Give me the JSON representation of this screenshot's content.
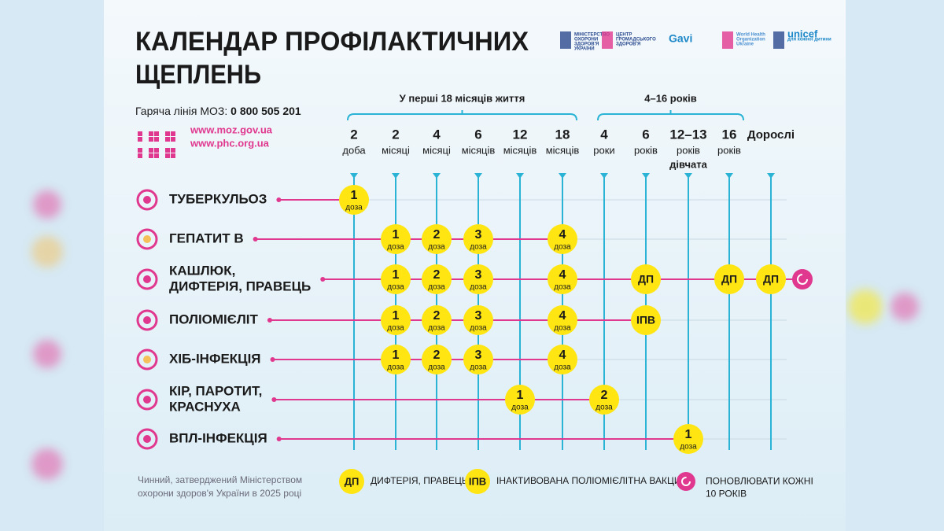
{
  "header": {
    "title": [
      "КАЛЕНДАР ПРОФІЛАКТИЧНИХ",
      "ЩЕПЛЕНЬ"
    ],
    "hotline_label": "Гаряча лінія МОЗ:",
    "hotline_number": "0 800 505 201",
    "urls": [
      "www.moz.gov.ua",
      "www.phc.org.ua"
    ],
    "logos": [
      [
        "МІНІСТЕРСТВО",
        "ОХОРОНИ",
        "ЗДОРОВ'Я",
        "УКРАЇНИ"
      ],
      [
        "ЦЕНТР",
        "ГРОМАДСЬКОГО",
        "ЗДОРОВ'Я"
      ],
      [
        "Gavi"
      ],
      [
        "World Health",
        "Organization",
        "Ukraine"
      ],
      [
        "unicef",
        "для кожної дитини"
      ]
    ]
  },
  "groups": [
    {
      "label": "У перші 18 місяців життя"
    },
    {
      "label": "4–16 років"
    }
  ],
  "columns": [
    {
      "num": "2",
      "unit": "доба"
    },
    {
      "num": "2",
      "unit": "місяці"
    },
    {
      "num": "4",
      "unit": "місяці"
    },
    {
      "num": "6",
      "unit": "місяців"
    },
    {
      "num": "12",
      "unit": "місяців"
    },
    {
      "num": "18",
      "unit": "місяців"
    },
    {
      "num": "4",
      "unit": "роки"
    },
    {
      "num": "6",
      "unit": "років"
    },
    {
      "num": "12–13",
      "unit": "років",
      "extra": "дівчата"
    },
    {
      "num": "16",
      "unit": "років"
    },
    {
      "num": "Дорослі"
    }
  ],
  "rows": [
    {
      "name": [
        "ТУБЕРКУЛЬОЗ"
      ],
      "cells": [
        {
          "n": "1",
          "u": "доза"
        },
        null,
        null,
        null,
        null,
        null,
        null,
        null,
        null,
        null,
        null
      ]
    },
    {
      "name": [
        "ГЕПАТИТ В"
      ],
      "cells": [
        null,
        {
          "n": "1",
          "u": "доза"
        },
        {
          "n": "2",
          "u": "доза"
        },
        {
          "n": "3",
          "u": "доза"
        },
        null,
        {
          "n": "4",
          "u": "доза"
        },
        null,
        null,
        null,
        null,
        null
      ]
    },
    {
      "name": [
        "КАШЛЮК,",
        "ДИФТЕРІЯ, ПРАВЕЦЬ"
      ],
      "cells": [
        null,
        {
          "n": "1",
          "u": "доза"
        },
        {
          "n": "2",
          "u": "доза"
        },
        {
          "n": "3",
          "u": "доза"
        },
        null,
        {
          "n": "4",
          "u": "доза"
        },
        null,
        {
          "n": "ДП"
        },
        null,
        {
          "n": "ДП"
        },
        {
          "n": "ДП"
        }
      ],
      "renew": true
    },
    {
      "name": [
        "ПОЛІОМІЄЛІТ"
      ],
      "cells": [
        null,
        {
          "n": "1",
          "u": "доза"
        },
        {
          "n": "2",
          "u": "доза"
        },
        {
          "n": "3",
          "u": "доза"
        },
        null,
        {
          "n": "4",
          "u": "доза"
        },
        null,
        {
          "n": "ІПВ"
        },
        null,
        null,
        null
      ]
    },
    {
      "name": [
        "ХІБ-ІНФЕКЦІЯ"
      ],
      "cells": [
        null,
        {
          "n": "1",
          "u": "доза"
        },
        {
          "n": "2",
          "u": "доза"
        },
        {
          "n": "3",
          "u": "доза"
        },
        null,
        {
          "n": "4",
          "u": "доза"
        },
        null,
        null,
        null,
        null,
        null
      ]
    },
    {
      "name": [
        "КІР, ПАРОТИТ,",
        "КРАСНУХА"
      ],
      "cells": [
        null,
        null,
        null,
        null,
        {
          "n": "1",
          "u": "доза"
        },
        null,
        {
          "n": "2",
          "u": "доза"
        },
        null,
        null,
        null,
        null
      ]
    },
    {
      "name": [
        "ВПЛ-ІНФЕКЦІЯ"
      ],
      "cells": [
        null,
        null,
        null,
        null,
        null,
        null,
        null,
        null,
        {
          "n": "1",
          "u": "доза"
        },
        null,
        null
      ]
    }
  ],
  "legend": [
    {
      "symbol": "ДП",
      "text": [
        "ДИФТЕРІЯ, ПРАВЕЦЬ"
      ]
    },
    {
      "symbol": "ІПВ",
      "text": [
        "ІНАКТИВОВАНА ПОЛІОМІЄЛІТНА ВАКЦИНА"
      ]
    },
    {
      "text": [
        "ПОНОВЛЮВАТИ КОЖНІ",
        "10 РОКІВ"
      ]
    }
  ],
  "footnote": [
    "Чинний, затверджений Міністерством",
    "охорони здоров'я України в 2025 році"
  ]
}
